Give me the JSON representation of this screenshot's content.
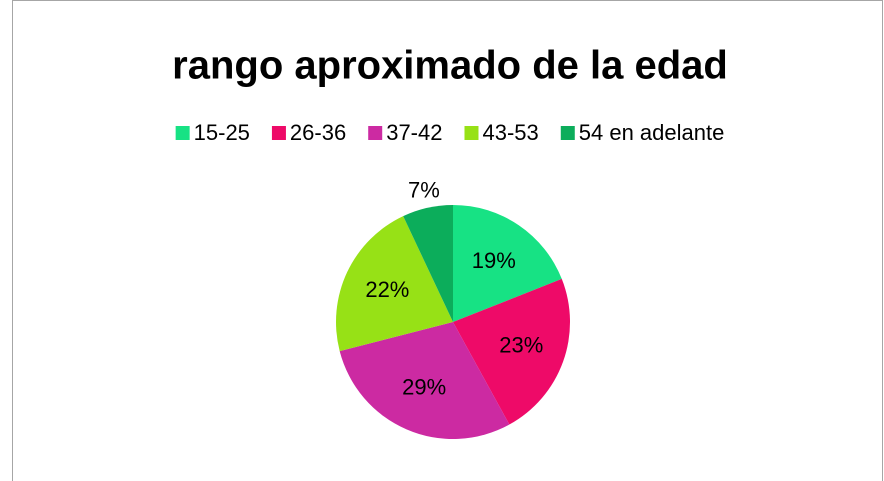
{
  "chart_data": {
    "type": "pie",
    "title": "rango aproximado de la edad",
    "categories": [
      "15-25",
      "26-36",
      "37-42",
      "43-53",
      "54 en adelante"
    ],
    "values": [
      19,
      23,
      29,
      22,
      7
    ],
    "value_labels": [
      "19%",
      "23%",
      "29%",
      "22%",
      "7%"
    ],
    "colors": [
      "#17e284",
      "#ee0a68",
      "#cc2aa2",
      "#97e116",
      "#0cad5b"
    ],
    "legend": "top"
  }
}
